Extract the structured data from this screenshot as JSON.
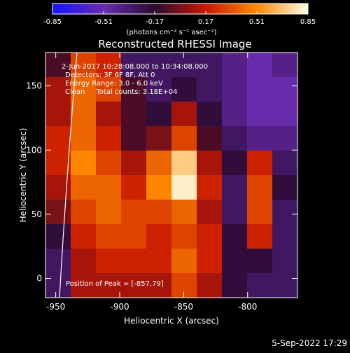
{
  "chart_data": {
    "type": "heatmap",
    "title": "Reconstructed RHESSI Image",
    "xlabel": "Heliocentric X (arcsec)",
    "ylabel": "Heliocentric Y (arcsec)",
    "xlim": [
      -958,
      -761
    ],
    "ylim": [
      -15,
      176
    ],
    "xticks": [
      -950,
      -900,
      -850,
      -800
    ],
    "yticks": [
      0,
      50,
      100,
      150
    ],
    "zlim": [
      -0.85,
      0.85
    ],
    "zticks": [
      -0.85,
      -0.51,
      -0.17,
      0.17,
      0.51,
      0.85
    ],
    "colorbar_label": "(photons cm⁻² s⁻¹ asec⁻²)",
    "colormap": [
      "#1414ff",
      "#6a2cb0",
      "#2a0a30",
      "#c81800",
      "#ff8a00",
      "#ffffe8"
    ],
    "z": [
      [
        -0.1,
        0.3,
        0.2,
        -0.3,
        -0.3,
        -0.3,
        -0.3,
        -0.4,
        -0.5,
        -0.4
      ],
      [
        0.1,
        0.4,
        0.3,
        -0.1,
        -0.3,
        -0.2,
        -0.3,
        -0.4,
        -0.5,
        -0.5
      ],
      [
        0.1,
        0.4,
        0.1,
        -0.1,
        -0.2,
        0.1,
        -0.2,
        -0.4,
        -0.5,
        -0.5
      ],
      [
        0.2,
        0.4,
        0.2,
        -0.1,
        0.0,
        0.3,
        -0.1,
        -0.3,
        -0.4,
        -0.4
      ],
      [
        0.2,
        0.5,
        0.3,
        0.1,
        0.4,
        0.7,
        0.1,
        -0.2,
        0.2,
        -0.3
      ],
      [
        0.1,
        0.4,
        0.4,
        0.2,
        0.5,
        0.8,
        0.2,
        -0.3,
        0.3,
        -0.2
      ],
      [
        0.0,
        0.3,
        0.4,
        0.3,
        0.3,
        0.4,
        0.1,
        -0.3,
        0.3,
        -0.3
      ],
      [
        -0.2,
        0.2,
        0.3,
        0.3,
        0.2,
        0.3,
        0.2,
        -0.2,
        0.2,
        -0.3
      ],
      [
        -0.3,
        0.1,
        0.2,
        0.2,
        0.2,
        0.4,
        0.2,
        -0.2,
        -0.2,
        -0.3
      ],
      [
        -0.3,
        0.1,
        0.1,
        0.1,
        0.1,
        0.3,
        0.1,
        -0.2,
        -0.3,
        -0.3
      ]
    ],
    "annotations": [
      "2-Jun-2017 10:28:08.000 to 10:34:08.000",
      "Detectors: 3F 6F 8F, Att 0",
      "Energy Range: 3.0 - 6.0 keV",
      "Clean     Total counts: 3.18E+04"
    ],
    "peak_label": "Position of Peak = [-857,79]",
    "footer": "5-Sep-2022 17:29"
  }
}
